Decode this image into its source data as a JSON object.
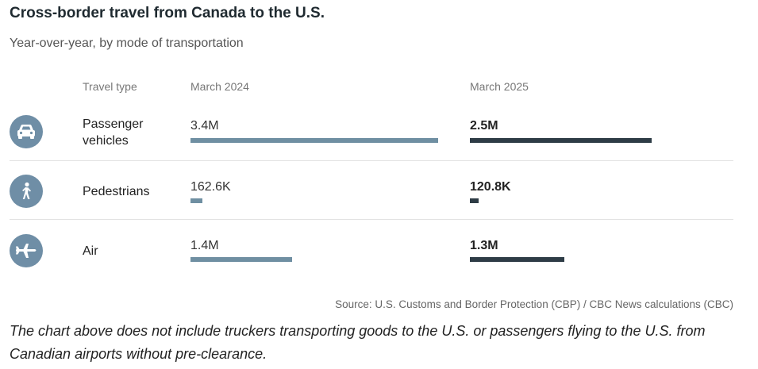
{
  "title": "Cross-border travel from Canada to the U.S.",
  "subtitle": "Year-over-year, by mode of transportation",
  "columns": {
    "type": "Travel type",
    "period_a": "March 2024",
    "period_b": "March 2025"
  },
  "colors": {
    "bar_2024": "#6f8fa2",
    "bar_2025": "#2e3c46",
    "icon_bg": "#6f8ea6"
  },
  "chart_data": {
    "type": "bar",
    "categories": [
      "Passenger vehicles",
      "Pedestrians",
      "Air"
    ],
    "series": [
      {
        "name": "March 2024",
        "values": [
          3400000,
          162600,
          1400000
        ],
        "labels": [
          "3.4M",
          "162.6K",
          "1.4M"
        ]
      },
      {
        "name": "March 2025",
        "values": [
          2500000,
          120800,
          1300000
        ],
        "labels": [
          "2.5M",
          "120.8K",
          "1.3M"
        ]
      }
    ],
    "title": "Cross-border travel from Canada to the U.S.",
    "subtitle": "Year-over-year, by mode of transportation",
    "xlabel": "",
    "ylabel": ""
  },
  "rows": [
    {
      "label_line1": "Passenger",
      "label_line2": "vehicles",
      "icon": "car-icon"
    },
    {
      "label_line1": "Pedestrians",
      "label_line2": "",
      "icon": "pedestrian-icon"
    },
    {
      "label_line1": "Air",
      "label_line2": "",
      "icon": "airplane-icon"
    }
  ],
  "source": "Source: U.S. Customs and Border Protection (CBP) / CBC News calculations (CBC)",
  "note": "The chart above does not include truckers transporting goods to the U.S. or passengers flying to the U.S. from Canadian airports without pre-clearance."
}
